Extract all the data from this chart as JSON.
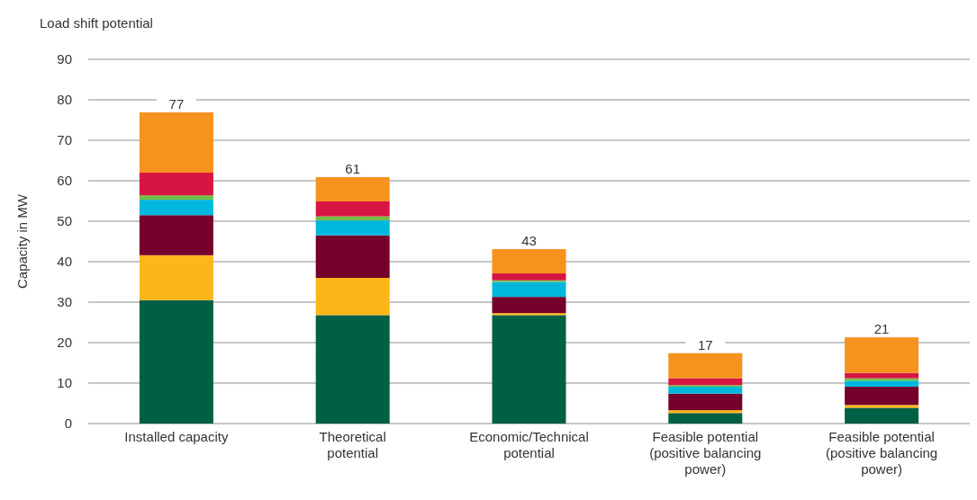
{
  "chart_data": {
    "type": "bar",
    "title": "Load shift potential",
    "ylabel": "Capacity in MW",
    "categories": [
      "Installed capacity",
      "Theoretical potential",
      "Economic/Technical potential",
      "Feasible potential (positive balancing power)",
      "Feasible potential (positive balancing power)"
    ],
    "stacked": true,
    "series": [
      {
        "color": "#006045",
        "values": [
          30.5,
          26.8,
          26.8,
          2.6,
          3.9
        ]
      },
      {
        "color": "#fbb718",
        "values": [
          11.1,
          9.2,
          0.5,
          0.7,
          0.7
        ]
      },
      {
        "color": "#75002c",
        "values": [
          9.9,
          10.5,
          4.0,
          4.1,
          4.5
        ]
      },
      {
        "color": "#00b7dd",
        "values": [
          3.8,
          3.7,
          3.7,
          1.7,
          1.5
        ]
      },
      {
        "color": "#72bf44",
        "values": [
          1.1,
          1.0,
          0.4,
          0.4,
          0.6
        ]
      },
      {
        "color": "#d61543",
        "values": [
          5.6,
          3.7,
          1.7,
          1.7,
          1.3
        ]
      },
      {
        "color": "#f6921e",
        "values": [
          14.9,
          6.0,
          6.0,
          6.2,
          8.8
        ]
      }
    ],
    "totals": [
      "77",
      "61",
      "43",
      "17",
      "21"
    ],
    "ylim": [
      0,
      90
    ],
    "yticks": [
      0,
      10,
      20,
      30,
      40,
      50,
      60,
      70,
      80,
      90
    ],
    "grid": "y"
  }
}
